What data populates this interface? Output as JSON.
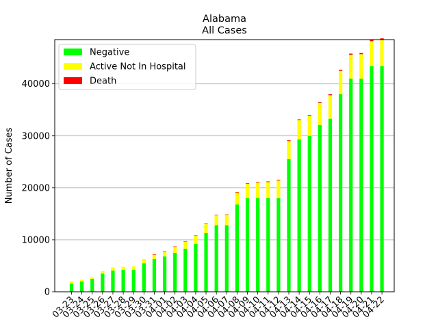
{
  "chart_data": {
    "type": "bar",
    "stacked": true,
    "title_line1": "Alabama",
    "title_line2": "All Cases",
    "xlabel": "",
    "ylabel": "Number of Cases",
    "ylim": [
      0,
      48500
    ],
    "yticks": [
      0,
      10000,
      20000,
      30000,
      40000
    ],
    "grid": "horizontal",
    "legend_position": "top-left",
    "categories": [
      "03-23",
      "03-24",
      "03-25",
      "03-26",
      "03-27",
      "03-28",
      "03-29",
      "03-30",
      "03-31",
      "04-01",
      "04-02",
      "04-03",
      "04-04",
      "04-05",
      "04-06",
      "04-07",
      "04-08",
      "04-09",
      "04-10",
      "04-11",
      "04-12",
      "04-13",
      "04-14",
      "04-15",
      "04-16",
      "04-17",
      "04-18",
      "04-19",
      "04-20",
      "04-21",
      "04-22"
    ],
    "series": [
      {
        "name": "Negative",
        "color": "#00ff00",
        "values": [
          1600,
          2000,
          2500,
          3500,
          4100,
          4200,
          4200,
          5500,
          6300,
          6800,
          7500,
          8300,
          9200,
          11300,
          12800,
          12800,
          16800,
          18000,
          18000,
          18000,
          18000,
          25500,
          29300,
          30000,
          32100,
          33300,
          38000,
          41000,
          41000,
          43400,
          43400
        ]
      },
      {
        "name": "Active Not In Hospital",
        "color": "#ffff00",
        "values": [
          400,
          300,
          300,
          500,
          600,
          600,
          700,
          800,
          900,
          1000,
          1200,
          1400,
          1600,
          1800,
          1900,
          2000,
          2300,
          2800,
          3000,
          3100,
          3400,
          3500,
          3700,
          3800,
          4200,
          4500,
          4500,
          4600,
          4700,
          4800,
          5100
        ]
      },
      {
        "name": "Death",
        "color": "#ff0000",
        "values": [
          0,
          0,
          0,
          0,
          0,
          0,
          0,
          0,
          10,
          20,
          30,
          40,
          50,
          60,
          80,
          90,
          100,
          110,
          120,
          130,
          140,
          150,
          160,
          170,
          180,
          190,
          200,
          210,
          220,
          230,
          240
        ]
      }
    ]
  }
}
